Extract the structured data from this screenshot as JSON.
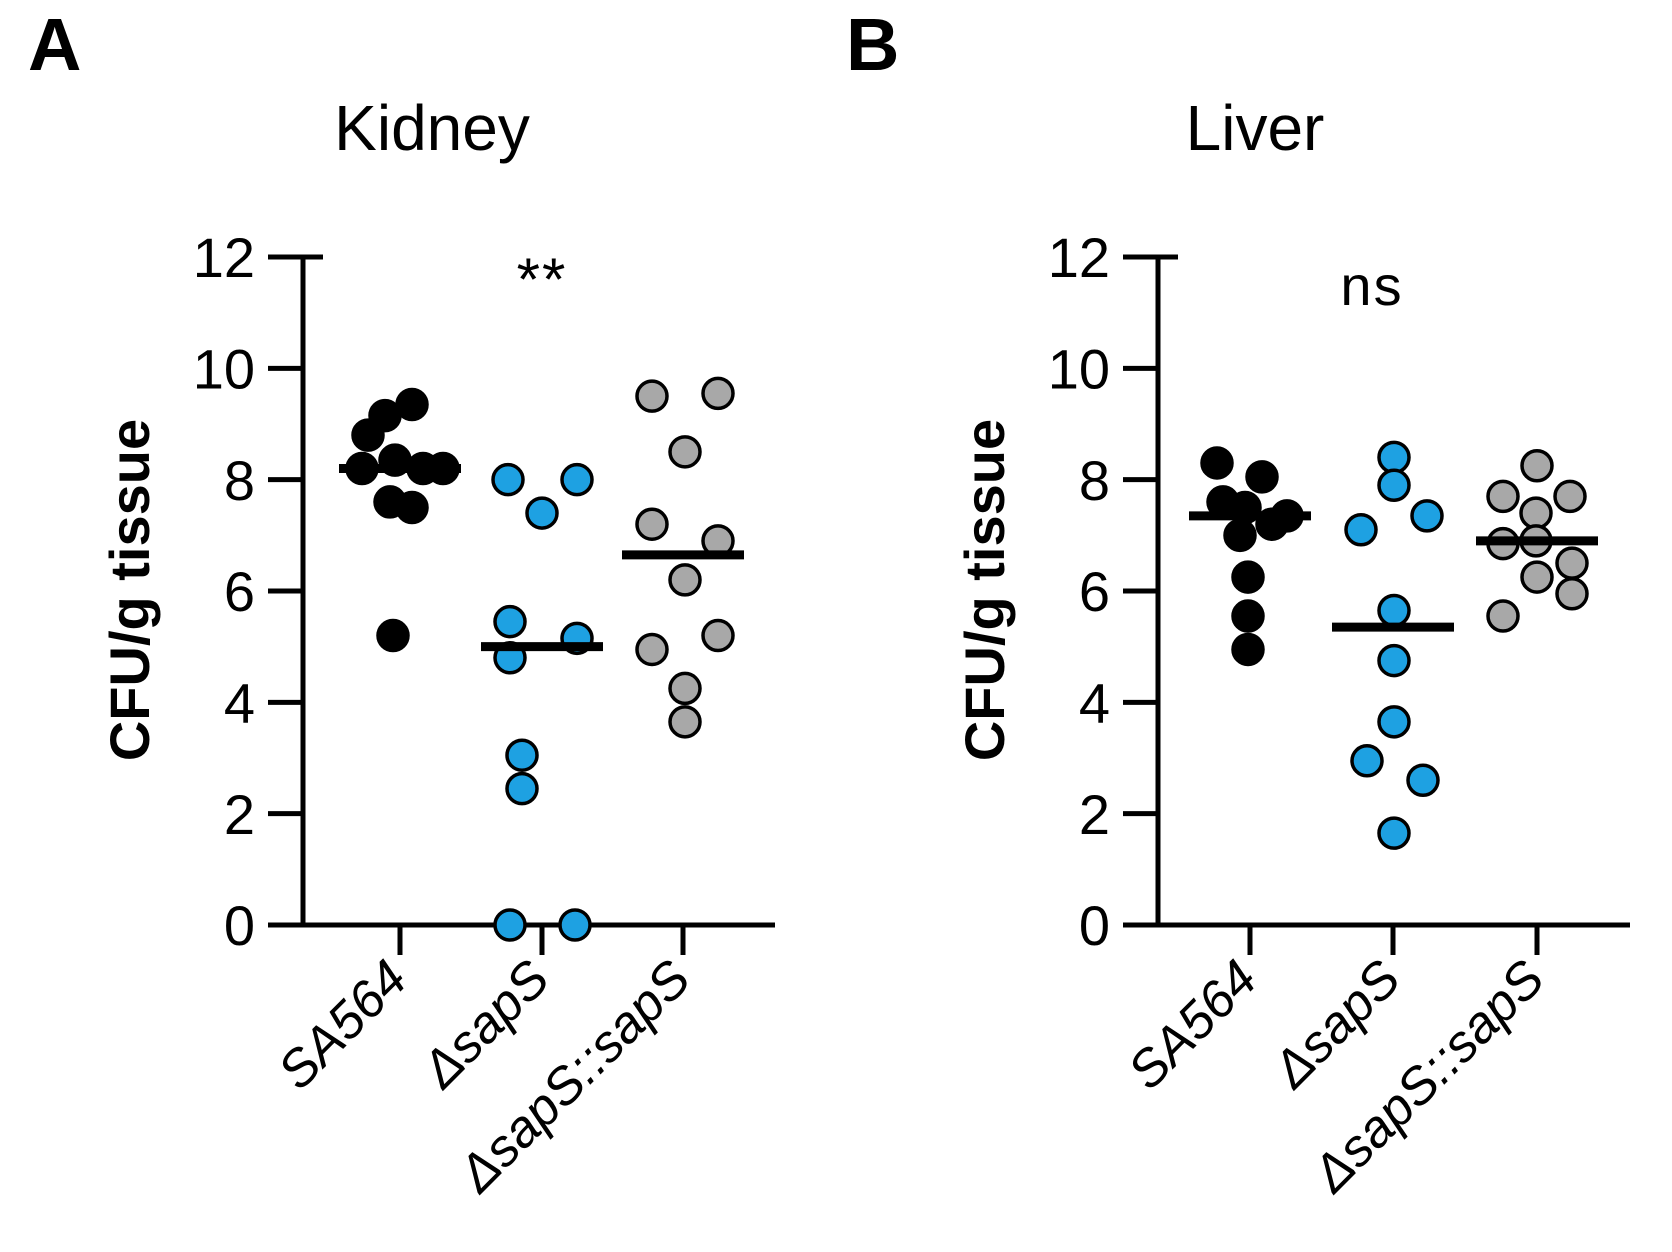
{
  "panel_labels": [
    "A",
    "B"
  ],
  "colors": {
    "wild_type_black": "#000000",
    "mutant_blue": "#1EA1E2",
    "complement_gray": "#A8A8A8",
    "axis": "#000000",
    "background": "#FFFFFF"
  },
  "chart_data": [
    {
      "type": "scatter",
      "panel": "A",
      "title": "Kidney",
      "significance": "**",
      "ylabel": "CFU/g tissue",
      "ylim": [
        0,
        12
      ],
      "yticks": [
        0,
        2,
        4,
        6,
        8,
        10,
        12
      ],
      "grid": false,
      "legend": "none",
      "categories": [
        "SA564",
        "ΔsapS",
        "ΔsapS::sapS"
      ],
      "series": [
        {
          "name": "SA564",
          "color": "#000000",
          "median": 8.2,
          "points": [
            {
              "v": 9.35,
              "dx": 12
            },
            {
              "v": 9.15,
              "dx": -15
            },
            {
              "v": 8.8,
              "dx": -32
            },
            {
              "v": 8.35,
              "dx": -5
            },
            {
              "v": 8.2,
              "dx": -38
            },
            {
              "v": 8.2,
              "dx": 23
            },
            {
              "v": 8.2,
              "dx": 43
            },
            {
              "v": 7.6,
              "dx": -10
            },
            {
              "v": 7.5,
              "dx": 12
            },
            {
              "v": 5.2,
              "dx": -7
            }
          ]
        },
        {
          "name": "ΔsapS",
          "color": "#1EA1E2",
          "median": 5.0,
          "points": [
            {
              "v": 8.0,
              "dx": -34
            },
            {
              "v": 8.0,
              "dx": 35
            },
            {
              "v": 7.4,
              "dx": 0
            },
            {
              "v": 5.45,
              "dx": -32
            },
            {
              "v": 5.15,
              "dx": 35
            },
            {
              "v": 4.8,
              "dx": -32
            },
            {
              "v": 3.05,
              "dx": -20
            },
            {
              "v": 2.45,
              "dx": -20
            },
            {
              "v": 0,
              "dx": -32
            },
            {
              "v": 0,
              "dx": 33
            }
          ]
        },
        {
          "name": "ΔsapS::sapS",
          "color": "#A8A8A8",
          "median": 6.65,
          "points": [
            {
              "v": 9.55,
              "dx": 35
            },
            {
              "v": 9.5,
              "dx": -31
            },
            {
              "v": 8.5,
              "dx": 2
            },
            {
              "v": 7.2,
              "dx": -31
            },
            {
              "v": 6.9,
              "dx": 35
            },
            {
              "v": 6.2,
              "dx": 2
            },
            {
              "v": 5.2,
              "dx": 35
            },
            {
              "v": 4.95,
              "dx": -31
            },
            {
              "v": 4.25,
              "dx": 2
            },
            {
              "v": 3.65,
              "dx": 2
            }
          ]
        }
      ]
    },
    {
      "type": "scatter",
      "panel": "B",
      "title": "Liver",
      "significance": "ns",
      "ylabel": "CFU/g tissue",
      "ylim": [
        0,
        12
      ],
      "yticks": [
        0,
        2,
        4,
        6,
        8,
        10,
        12
      ],
      "grid": false,
      "legend": "none",
      "categories": [
        "SA564",
        "ΔsapS",
        "ΔsapS::sapS"
      ],
      "series": [
        {
          "name": "SA564",
          "color": "#000000",
          "median": 7.35,
          "points": [
            {
              "v": 8.3,
              "dx": -33
            },
            {
              "v": 8.05,
              "dx": 12
            },
            {
              "v": 7.6,
              "dx": -27
            },
            {
              "v": 7.5,
              "dx": -5
            },
            {
              "v": 7.35,
              "dx": 37
            },
            {
              "v": 7.2,
              "dx": 22
            },
            {
              "v": 7.0,
              "dx": -10
            },
            {
              "v": 6.25,
              "dx": -2
            },
            {
              "v": 5.55,
              "dx": -2
            },
            {
              "v": 4.95,
              "dx": -2
            }
          ]
        },
        {
          "name": "ΔsapS",
          "color": "#1EA1E2",
          "median": 5.35,
          "points": [
            {
              "v": 8.4,
              "dx": 1
            },
            {
              "v": 7.9,
              "dx": 1
            },
            {
              "v": 7.35,
              "dx": 34
            },
            {
              "v": 7.1,
              "dx": -32
            },
            {
              "v": 5.65,
              "dx": 1
            },
            {
              "v": 4.75,
              "dx": 1
            },
            {
              "v": 3.65,
              "dx": 1
            },
            {
              "v": 2.95,
              "dx": -26
            },
            {
              "v": 2.6,
              "dx": 30
            },
            {
              "v": 1.65,
              "dx": 1
            }
          ]
        },
        {
          "name": "ΔsapS::sapS",
          "color": "#A8A8A8",
          "median": 6.9,
          "points": [
            {
              "v": 8.25,
              "dx": 0
            },
            {
              "v": 7.7,
              "dx": -34
            },
            {
              "v": 7.7,
              "dx": 33
            },
            {
              "v": 7.4,
              "dx": -1
            },
            {
              "v": 6.9,
              "dx": -1
            },
            {
              "v": 6.85,
              "dx": -34
            },
            {
              "v": 6.5,
              "dx": 35
            },
            {
              "v": 6.25,
              "dx": 0
            },
            {
              "v": 5.95,
              "dx": 35
            },
            {
              "v": 5.55,
              "dx": -34
            }
          ]
        }
      ]
    }
  ]
}
